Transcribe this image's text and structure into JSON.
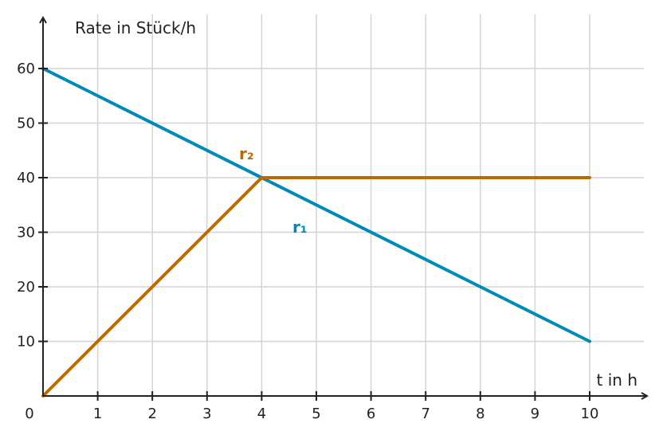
{
  "chart_data": {
    "type": "line",
    "ylabel": "Rate in Stück/h",
    "xlabel": "t in h",
    "origin_label": "0",
    "xlim": [
      0,
      10
    ],
    "ylim": [
      0,
      60
    ],
    "x_ticks": [
      1,
      2,
      3,
      4,
      5,
      6,
      7,
      8,
      9,
      10
    ],
    "y_ticks": [
      10,
      20,
      30,
      40,
      50,
      60
    ],
    "grid": true,
    "series": [
      {
        "name": "r₁",
        "color": "#0088bb",
        "x": [
          0,
          10
        ],
        "y": [
          60,
          10
        ]
      },
      {
        "name": "r₂",
        "color": "#bb6a00",
        "x": [
          0,
          4,
          10
        ],
        "y": [
          0,
          40,
          40
        ]
      }
    ]
  }
}
